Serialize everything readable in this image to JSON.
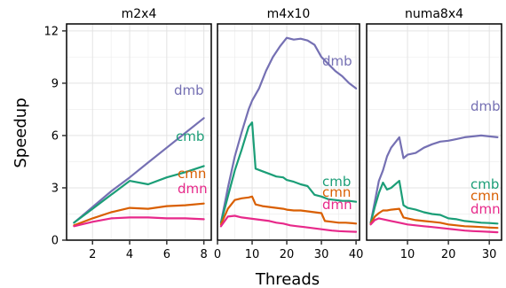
{
  "chart_data": {
    "type": "line",
    "ylabel": "Speedup",
    "xlabel": "Threads",
    "ylim": [
      0,
      12.4
    ],
    "yticks": [
      0,
      3,
      6,
      9,
      12
    ],
    "grid": true,
    "legend": "direct-labels",
    "colors": {
      "dmb": "#7570b3",
      "cmb": "#1b9e77",
      "cmn": "#d95f02",
      "dmn": "#e7298a"
    },
    "panels": [
      {
        "title": "m2x4",
        "xlim": [
          0.6,
          8.4
        ],
        "xticks": [
          2,
          4,
          6,
          8
        ],
        "series": [
          {
            "name": "dmb",
            "label": "dmb",
            "x": [
              1,
              2,
              3,
              4,
              5,
              6,
              7,
              8
            ],
            "y": [
              1.0,
              1.9,
              2.8,
              3.6,
              4.45,
              5.3,
              6.15,
              7.0
            ]
          },
          {
            "name": "cmb",
            "label": "cmb",
            "x": [
              1,
              2,
              3,
              4,
              5,
              6,
              7,
              8
            ],
            "y": [
              1.0,
              1.8,
              2.6,
              3.4,
              3.2,
              3.6,
              3.9,
              4.25
            ]
          },
          {
            "name": "cmn",
            "label": "cmn",
            "x": [
              1,
              2,
              3,
              4,
              5,
              6,
              7,
              8
            ],
            "y": [
              0.85,
              1.25,
              1.6,
              1.85,
              1.8,
              1.95,
              2.0,
              2.1
            ]
          },
          {
            "name": "dmn",
            "label": "dmn",
            "x": [
              1,
              2,
              3,
              4,
              5,
              6,
              7,
              8
            ],
            "y": [
              0.8,
              1.05,
              1.25,
              1.3,
              1.3,
              1.25,
              1.25,
              1.2
            ]
          }
        ]
      },
      {
        "title": "m4x10",
        "xlim": [
          0,
          41
        ],
        "xticks": [
          0,
          10,
          20,
          30,
          40
        ],
        "series": [
          {
            "name": "dmb",
            "label": "dmb",
            "x": [
              1,
              3,
              5,
              7,
              9,
              10,
              12,
              14,
              16,
              18,
              20,
              22,
              24,
              26,
              28,
              30,
              32,
              34,
              36,
              38,
              40
            ],
            "y": [
              1.0,
              3.0,
              4.8,
              6.2,
              7.5,
              8.0,
              8.7,
              9.7,
              10.5,
              11.1,
              11.6,
              11.5,
              11.55,
              11.45,
              11.2,
              10.5,
              10.1,
              9.7,
              9.4,
              9.0,
              8.7
            ]
          },
          {
            "name": "cmb",
            "label": "cmb",
            "x": [
              1,
              3,
              5,
              7,
              9,
              10,
              11,
              13,
              15,
              17,
              19,
              20,
              22,
              24,
              26,
              28,
              30,
              32,
              34,
              36,
              38,
              40
            ],
            "y": [
              1.0,
              2.5,
              4.0,
              5.2,
              6.5,
              6.75,
              4.1,
              3.95,
              3.8,
              3.65,
              3.6,
              3.45,
              3.35,
              3.2,
              3.1,
              2.6,
              2.5,
              2.35,
              2.3,
              2.25,
              2.25,
              2.2
            ]
          },
          {
            "name": "cmn",
            "label": "cmn",
            "x": [
              1,
              3,
              5,
              7,
              9,
              10,
              11,
              13,
              15,
              17,
              19,
              20,
              22,
              24,
              26,
              28,
              30,
              31,
              33,
              35,
              37,
              39,
              40
            ],
            "y": [
              0.9,
              1.8,
              2.3,
              2.4,
              2.45,
              2.5,
              2.05,
              1.95,
              1.9,
              1.85,
              1.8,
              1.75,
              1.7,
              1.7,
              1.65,
              1.6,
              1.55,
              1.1,
              1.05,
              1.0,
              1.0,
              0.97,
              0.95
            ]
          },
          {
            "name": "dmn",
            "label": "dmn",
            "x": [
              1,
              3,
              5,
              7,
              9,
              11,
              13,
              15,
              17,
              19,
              21,
              23,
              25,
              27,
              29,
              31,
              33,
              35,
              37,
              40
            ],
            "y": [
              0.8,
              1.35,
              1.4,
              1.3,
              1.25,
              1.2,
              1.15,
              1.1,
              1.0,
              0.95,
              0.85,
              0.8,
              0.75,
              0.7,
              0.65,
              0.6,
              0.55,
              0.52,
              0.5,
              0.48
            ]
          }
        ]
      },
      {
        "title": "numa8x4",
        "xlim": [
          0,
          33
        ],
        "xticks": [
          10,
          20,
          30
        ],
        "series": [
          {
            "name": "dmb",
            "label": "dmb",
            "x": [
              1,
              2,
              3,
              4,
              5,
              6,
              8,
              9,
              10,
              12,
              14,
              16,
              18,
              20,
              22,
              24,
              26,
              28,
              30,
              32
            ],
            "y": [
              1.0,
              2.2,
              3.4,
              4.0,
              4.8,
              5.3,
              5.9,
              4.7,
              4.9,
              5.0,
              5.3,
              5.5,
              5.65,
              5.7,
              5.8,
              5.9,
              5.95,
              6.0,
              5.95,
              5.9
            ]
          },
          {
            "name": "cmb",
            "label": "cmb",
            "x": [
              1,
              2,
              3,
              4,
              5,
              6,
              8,
              9,
              10,
              12,
              14,
              16,
              18,
              20,
              22,
              24,
              26,
              28,
              30,
              32
            ],
            "y": [
              1.0,
              1.9,
              2.7,
              3.3,
              2.9,
              3.0,
              3.4,
              2.0,
              1.85,
              1.75,
              1.6,
              1.5,
              1.45,
              1.25,
              1.2,
              1.1,
              1.05,
              1.0,
              0.98,
              0.95
            ]
          },
          {
            "name": "cmn",
            "label": "cmn",
            "x": [
              1,
              2,
              3,
              4,
              5,
              6,
              8,
              9,
              10,
              12,
              14,
              16,
              18,
              20,
              22,
              24,
              26,
              28,
              30,
              32
            ],
            "y": [
              0.95,
              1.35,
              1.55,
              1.7,
              1.7,
              1.75,
              1.8,
              1.3,
              1.25,
              1.15,
              1.1,
              1.05,
              1.0,
              0.9,
              0.85,
              0.8,
              0.78,
              0.75,
              0.72,
              0.7
            ]
          },
          {
            "name": "dmn",
            "label": "dmn",
            "x": [
              1,
              2,
              3,
              4,
              6,
              8,
              10,
              12,
              14,
              16,
              18,
              20,
              22,
              24,
              26,
              28,
              30,
              32
            ],
            "y": [
              0.9,
              1.15,
              1.25,
              1.2,
              1.1,
              1.0,
              0.9,
              0.85,
              0.8,
              0.75,
              0.7,
              0.65,
              0.6,
              0.55,
              0.52,
              0.5,
              0.48,
              0.45
            ]
          }
        ]
      }
    ]
  }
}
